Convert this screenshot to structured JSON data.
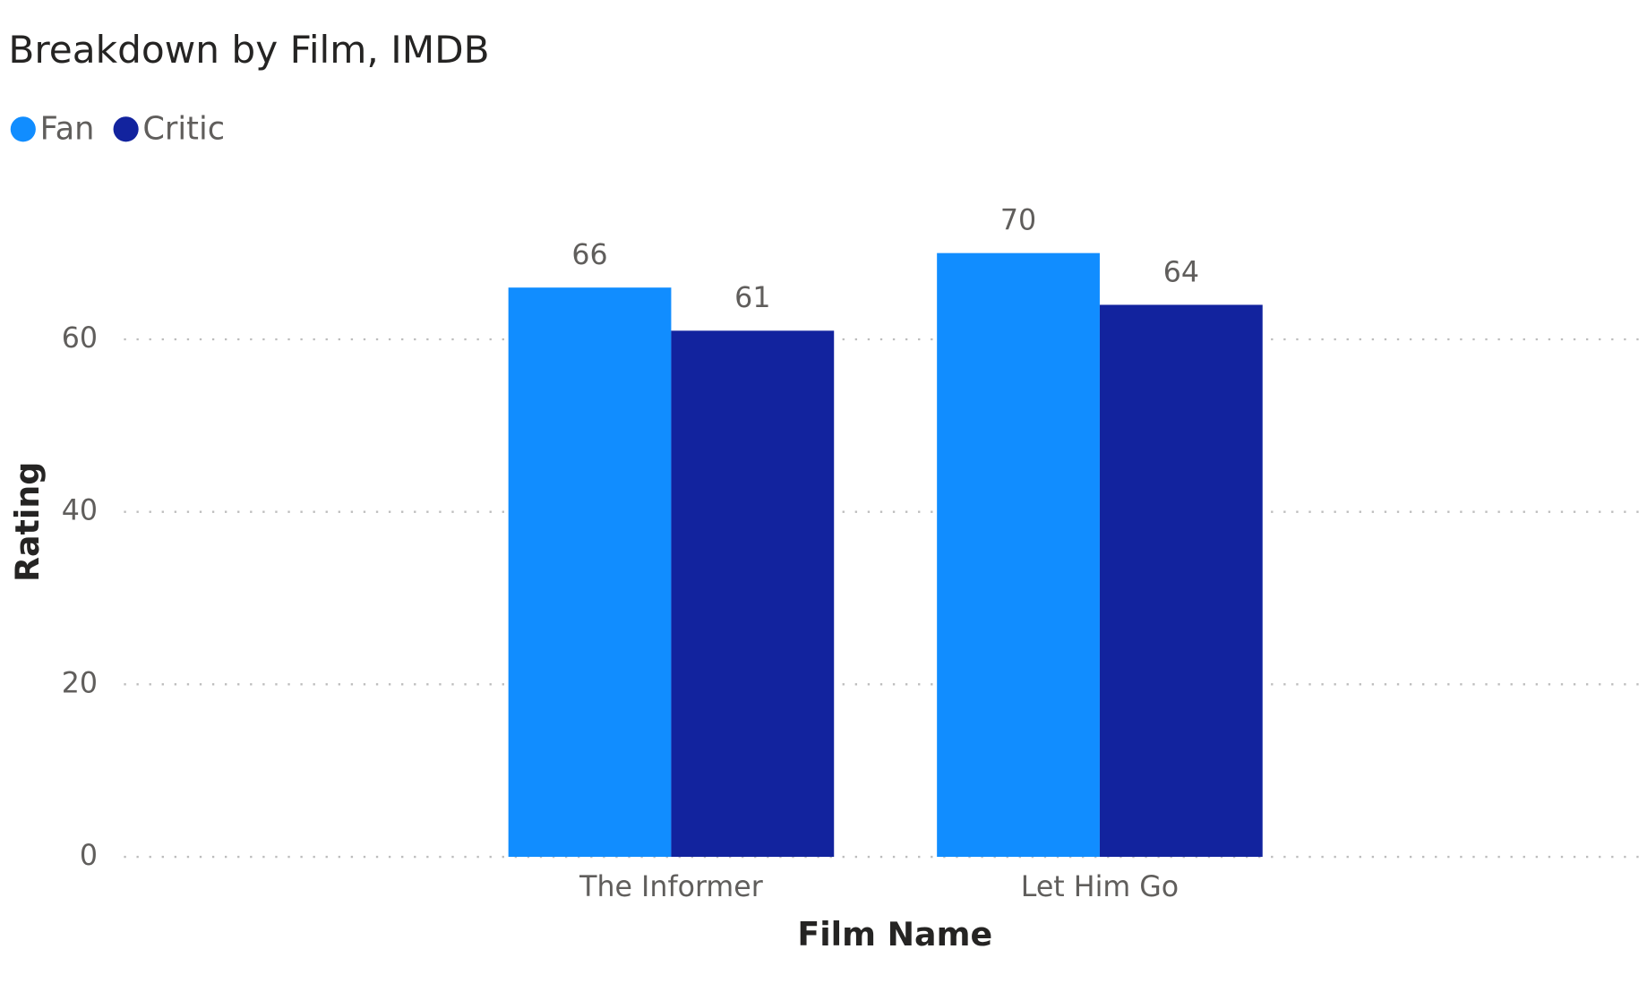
{
  "chart_data": {
    "type": "bar",
    "title": "Breakdown by Film, IMDB",
    "x_label": "Film Name",
    "y_label": "Rating",
    "categories": [
      "The Informer",
      "Let Him Go"
    ],
    "series": [
      {
        "name": "Fan",
        "color": "#118DFF",
        "values": [
          66,
          70
        ]
      },
      {
        "name": "Critic",
        "color": "#12239E",
        "values": [
          61,
          64
        ]
      }
    ],
    "ylim": [
      0,
      70
    ],
    "yticks": [
      0,
      20,
      40,
      60
    ],
    "grid": true
  }
}
